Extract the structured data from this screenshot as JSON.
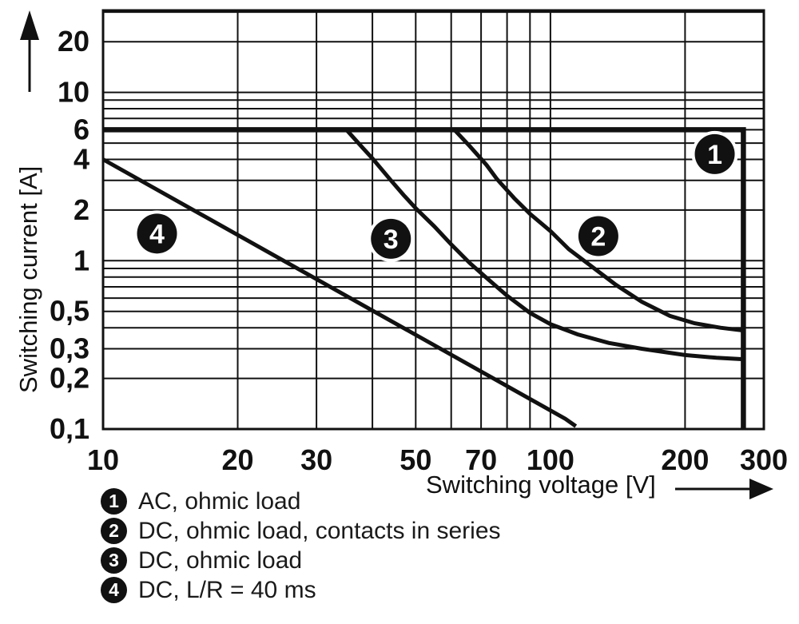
{
  "chart_data": {
    "type": "line",
    "title": "",
    "xlabel": "Switching voltage [V]",
    "ylabel": "Switching current [A]",
    "x_scale": "log",
    "y_scale": "log",
    "xlim": [
      10,
      300
    ],
    "ylim": [
      0.1,
      30.7
    ],
    "grid": true,
    "x_ticks": [
      {
        "v": 10,
        "label": "10"
      },
      {
        "v": 20,
        "label": "20"
      },
      {
        "v": 30,
        "label": "30"
      },
      {
        "v": 40,
        "label": ""
      },
      {
        "v": 50,
        "label": "50"
      },
      {
        "v": 60,
        "label": ""
      },
      {
        "v": 70,
        "label": "70"
      },
      {
        "v": 80,
        "label": ""
      },
      {
        "v": 90,
        "label": ""
      },
      {
        "v": 100,
        "label": "100"
      },
      {
        "v": 200,
        "label": "200"
      },
      {
        "v": 300,
        "label": "300"
      }
    ],
    "y_ticks": [
      {
        "v": 0.1,
        "label": "0,1"
      },
      {
        "v": 0.2,
        "label": "0,2"
      },
      {
        "v": 0.3,
        "label": "0,3"
      },
      {
        "v": 0.4,
        "label": ""
      },
      {
        "v": 0.5,
        "label": "0,5"
      },
      {
        "v": 0.6,
        "label": ""
      },
      {
        "v": 0.7,
        "label": ""
      },
      {
        "v": 0.8,
        "label": ""
      },
      {
        "v": 0.9,
        "label": ""
      },
      {
        "v": 1,
        "label": "1"
      },
      {
        "v": 2,
        "label": "2"
      },
      {
        "v": 3,
        "label": ""
      },
      {
        "v": 4,
        "label": "4"
      },
      {
        "v": 5,
        "label": ""
      },
      {
        "v": 6,
        "label": "6"
      },
      {
        "v": 7,
        "label": ""
      },
      {
        "v": 8,
        "label": ""
      },
      {
        "v": 9,
        "label": ""
      },
      {
        "v": 10,
        "label": "10"
      },
      {
        "v": 20,
        "label": "20"
      },
      {
        "v": 30,
        "label": ""
      }
    ],
    "series": [
      {
        "id": "1",
        "name": "AC, ohmic load",
        "width": 6.5,
        "points": [
          [
            10,
            6
          ],
          [
            270,
            6
          ],
          [
            270,
            0.1
          ]
        ]
      },
      {
        "id": "2",
        "name": "DC, ohmic load, contacts in series",
        "width": 5,
        "points": [
          [
            61,
            6
          ],
          [
            66,
            4.8
          ],
          [
            72,
            3.7
          ],
          [
            76,
            3.05
          ],
          [
            83,
            2.35
          ],
          [
            90,
            1.9
          ],
          [
            100,
            1.5
          ],
          [
            110,
            1.17
          ],
          [
            122,
            0.95
          ],
          [
            140,
            0.72
          ],
          [
            160,
            0.57
          ],
          [
            185,
            0.47
          ],
          [
            210,
            0.425
          ],
          [
            240,
            0.4
          ],
          [
            270,
            0.385
          ]
        ]
      },
      {
        "id": "3",
        "name": "DC, ohmic load",
        "width": 5,
        "points": [
          [
            35,
            6
          ],
          [
            38,
            4.7
          ],
          [
            40,
            4.05
          ],
          [
            44,
            3.0
          ],
          [
            47,
            2.45
          ],
          [
            50,
            2.05
          ],
          [
            55,
            1.6
          ],
          [
            60,
            1.25
          ],
          [
            66,
            0.97
          ],
          [
            72,
            0.79
          ],
          [
            80,
            0.62
          ],
          [
            90,
            0.49
          ],
          [
            100,
            0.42
          ],
          [
            115,
            0.365
          ],
          [
            135,
            0.325
          ],
          [
            160,
            0.3
          ],
          [
            200,
            0.275
          ],
          [
            235,
            0.265
          ],
          [
            270,
            0.26
          ]
        ]
      },
      {
        "id": "4",
        "name": "DC, L/R = 40 ms",
        "width": 5,
        "points": [
          [
            10,
            4
          ],
          [
            108,
            0.115
          ],
          [
            114,
            0.104
          ]
        ]
      }
    ],
    "badges": [
      {
        "n": "1",
        "x": 233,
        "y": 4.3
      },
      {
        "n": "2",
        "x": 128,
        "y": 1.4
      },
      {
        "n": "3",
        "x": 44,
        "y": 1.35
      },
      {
        "n": "4",
        "x": 13.2,
        "y": 1.45
      }
    ],
    "colors": {
      "ink": "#111111",
      "background": "#ffffff",
      "badge_fill": "#111111",
      "badge_text": "#ffffff"
    }
  },
  "legend": {
    "items": [
      {
        "num": "1",
        "label": "AC, ohmic load"
      },
      {
        "num": "2",
        "label": "DC, ohmic load, contacts in series"
      },
      {
        "num": "3",
        "label": "DC, ohmic load"
      },
      {
        "num": "4",
        "label": "DC, L/R = 40 ms"
      }
    ]
  }
}
